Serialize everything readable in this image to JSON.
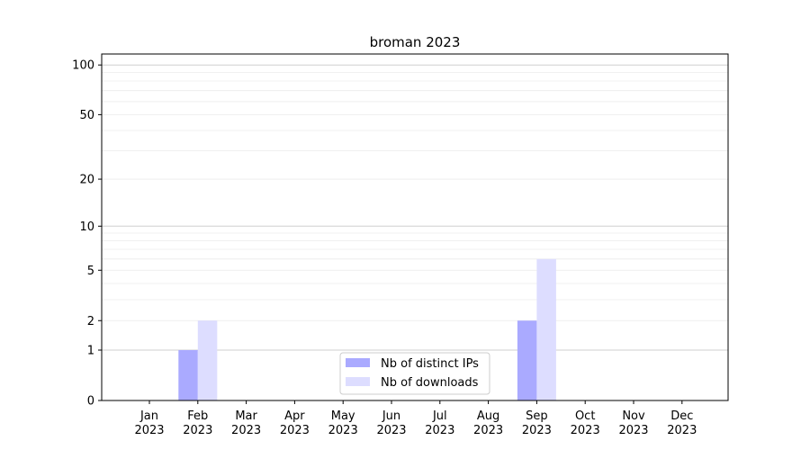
{
  "chart_data": {
    "type": "bar",
    "title": "broman 2023",
    "xlabel": "",
    "ylabel": "",
    "yscale": "log(1+y)",
    "ylim": [
      0,
      117
    ],
    "grid": true,
    "legend_position": "bottom-center",
    "categories": [
      "Jan\n2023",
      "Feb\n2023",
      "Mar\n2023",
      "Apr\n2023",
      "May\n2023",
      "Jun\n2023",
      "Jul\n2023",
      "Aug\n2023",
      "Sep\n2023",
      "Oct\n2023",
      "Nov\n2023",
      "Dec\n2023"
    ],
    "yticks": [
      0,
      1,
      2,
      5,
      10,
      20,
      50,
      100
    ],
    "series": [
      {
        "name": "Nb of distinct IPs",
        "color": "#aaaaff",
        "values": [
          0,
          1,
          0,
          0,
          0,
          0,
          0,
          0,
          2,
          0,
          0,
          0
        ]
      },
      {
        "name": "Nb of downloads",
        "color": "#ddddff",
        "values": [
          0,
          2,
          0,
          0,
          0,
          0,
          0,
          0,
          6,
          0,
          0,
          0
        ]
      }
    ]
  }
}
